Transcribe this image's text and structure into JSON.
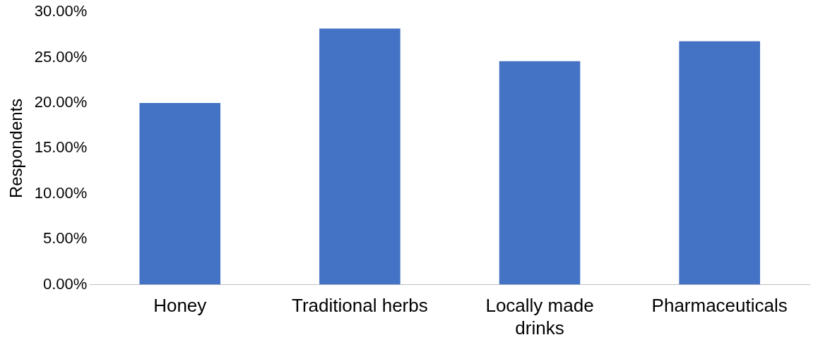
{
  "chart_data": {
    "type": "bar",
    "ylabel": "Respondents",
    "categories": [
      "Honey",
      "Traditional herbs",
      "Locally made drinks",
      "Pharmaceuticals"
    ],
    "values": [
      20.0,
      28.2,
      24.6,
      26.8
    ],
    "color": "#4472c4",
    "ylim": [
      0,
      30
    ],
    "yticks": [
      {
        "value": 0,
        "label": "0.00%"
      },
      {
        "value": 5,
        "label": "5.00%"
      },
      {
        "value": 10,
        "label": "10.00%"
      },
      {
        "value": 15,
        "label": "15.00%"
      },
      {
        "value": 20,
        "label": "20.00%"
      },
      {
        "value": 25,
        "label": "25.00%"
      },
      {
        "value": 30,
        "label": "30.00%"
      }
    ],
    "grid": false,
    "legend": false
  }
}
